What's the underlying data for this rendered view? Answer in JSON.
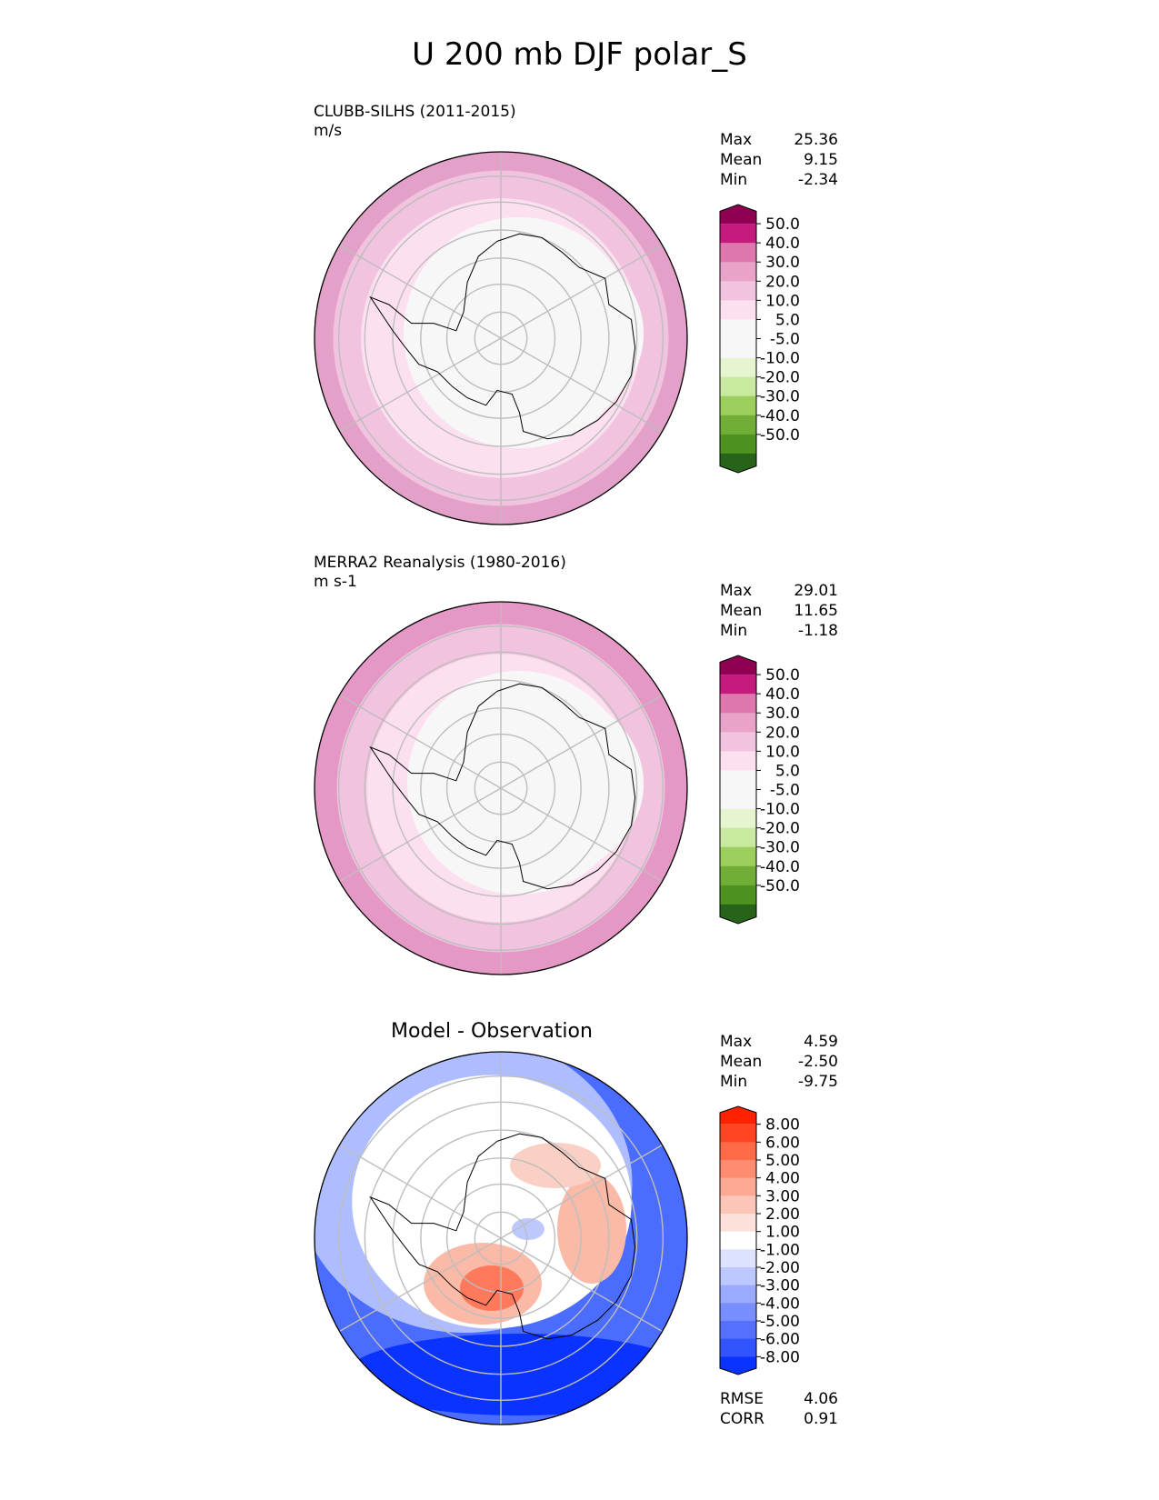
{
  "title": "U 200 mb DJF polar_S",
  "panels": [
    {
      "name": "test",
      "title_line1": "CLUBB-SILHS (2011-2015)",
      "title_line2": "m/s",
      "stats": [
        {
          "label": "Max",
          "value": "25.36"
        },
        {
          "label": "Mean",
          "value": "9.15"
        },
        {
          "label": "Min",
          "value": "-2.34"
        }
      ],
      "colorbar": {
        "ticks": [
          "50.0",
          "40.0",
          "30.0",
          "20.0",
          "10.0",
          "5.0",
          "-5.0",
          "-10.0",
          "-20.0",
          "-30.0",
          "-40.0",
          "-50.0"
        ],
        "colors": [
          "#8e0152",
          "#c51b7d",
          "#de77ae",
          "#e9a3c9",
          "#f1c3df",
          "#fde0ef",
          "#f7f7f7",
          "#f7f7f7",
          "#e6f5d0",
          "#c7e9a0",
          "#9dcf5f",
          "#72ad37",
          "#4d9221",
          "#276419"
        ]
      },
      "map": {
        "rings": [
          "#e3a0c8",
          "#f1c3df",
          "#fde0ef",
          "#f7f7f7"
        ],
        "ring_radius_fraction": [
          1.0,
          0.9,
          0.75,
          0.62
        ]
      }
    },
    {
      "name": "reference",
      "title_line1": "MERRA2 Reanalysis (1980-2016)",
      "title_line2": "m s-1",
      "stats": [
        {
          "label": "Max",
          "value": "29.01"
        },
        {
          "label": "Mean",
          "value": "11.65"
        },
        {
          "label": "Min",
          "value": "-1.18"
        }
      ],
      "colorbar": {
        "ticks": [
          "50.0",
          "40.0",
          "30.0",
          "20.0",
          "10.0",
          "5.0",
          "-5.0",
          "-10.0",
          "-20.0",
          "-30.0",
          "-40.0",
          "-50.0"
        ],
        "colors": [
          "#8e0152",
          "#c51b7d",
          "#de77ae",
          "#e9a3c9",
          "#f1c3df",
          "#fde0ef",
          "#f7f7f7",
          "#f7f7f7",
          "#e6f5d0",
          "#c7e9a0",
          "#9dcf5f",
          "#72ad37",
          "#4d9221",
          "#276419"
        ]
      },
      "map": {
        "rings": [
          "#e597c5",
          "#f1c3df",
          "#fde0ef",
          "#f7f7f7"
        ],
        "ring_radius_fraction": [
          1.0,
          0.88,
          0.72,
          0.6
        ]
      }
    },
    {
      "name": "difference",
      "title_line1": "Model - Observation",
      "stats": [
        {
          "label": "Max",
          "value": "4.59"
        },
        {
          "label": "Mean",
          "value": "-2.50"
        },
        {
          "label": "Min",
          "value": "-9.75"
        }
      ],
      "stats_extra": [
        {
          "label": "RMSE",
          "value": "4.06"
        },
        {
          "label": "CORR",
          "value": "0.91"
        }
      ],
      "colorbar": {
        "ticks": [
          "8.00",
          "6.00",
          "5.00",
          "4.00",
          "3.00",
          "2.00",
          "1.00",
          "-1.00",
          "-2.00",
          "-3.00",
          "-4.00",
          "-5.00",
          "-6.00",
          "-8.00"
        ],
        "colors": [
          "#ff2200",
          "#ff4522",
          "#ff6a48",
          "#ff8b70",
          "#fda994",
          "#fbc6b7",
          "#fbe1da",
          "#ffffff",
          "#dde3ff",
          "#bcc8ff",
          "#9aabff",
          "#788eff",
          "#5570ff",
          "#3254ff",
          "#0a33ff"
        ]
      },
      "map": {
        "outer": "#4a6cff",
        "mid": "#aebdff",
        "inner": "#ffffff",
        "warm": "#fbb9a8",
        "warm_core": "#ff7a5c"
      }
    }
  ]
}
